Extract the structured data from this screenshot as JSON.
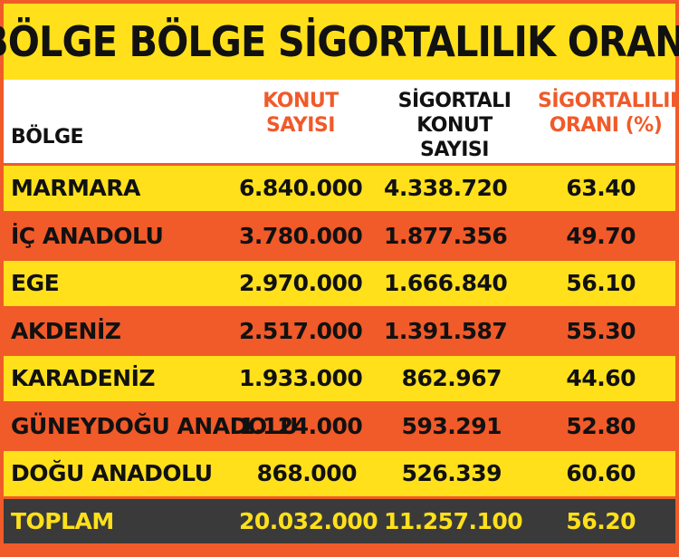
{
  "title": "BÖLGE BÖLGE SİGORTALILIK ORANI",
  "colors": {
    "frame": "#F15A29",
    "row_yellow": "#FFE01B",
    "row_orange": "#F15A29",
    "total_bg": "#3A3A3A",
    "total_text": "#FFE01B",
    "header_bg": "#FFFFFF",
    "header_accent": "#F15A29"
  },
  "header": {
    "bolge": "BÖLGE",
    "konut": "KONUT\nSAYISI",
    "sigortali": "SİGORTALI\nKONUT SAYISI",
    "oran": "SİGORTALILIK\nORANI (%)"
  },
  "chart_data": {
    "type": "table",
    "title": "BÖLGE BÖLGE SİGORTALILIK ORANI",
    "columns": [
      "BÖLGE",
      "KONUT SAYISI",
      "SİGORTALI KONUT SAYISI",
      "SİGORTALILIK ORANI (%)"
    ],
    "rows": [
      {
        "bolge": "MARMARA",
        "konut": "6.840.000",
        "sigortali": "4.338.720",
        "oran": "63.40"
      },
      {
        "bolge": "İÇ ANADOLU",
        "konut": "3.780.000",
        "sigortali": "1.877.356",
        "oran": "49.70"
      },
      {
        "bolge": "EGE",
        "konut": "2.970.000",
        "sigortali": "1.666.840",
        "oran": "56.10"
      },
      {
        "bolge": "AKDENİZ",
        "konut": "2.517.000",
        "sigortali": "1.391.587",
        "oran": "55.30"
      },
      {
        "bolge": "KARADENİZ",
        "konut": "1.933.000",
        "sigortali": "862.967",
        "oran": "44.60"
      },
      {
        "bolge": "GÜNEYDOĞU ANADOLU",
        "konut": "1.124.000",
        "sigortali": "593.291",
        "oran": "52.80"
      },
      {
        "bolge": "DOĞU ANADOLU",
        "konut": "868.000",
        "sigortali": "526.339",
        "oran": "60.60"
      }
    ],
    "total": {
      "bolge": "TOPLAM",
      "konut": "20.032.000",
      "sigortali": "11.257.100",
      "oran": "56.20"
    }
  }
}
